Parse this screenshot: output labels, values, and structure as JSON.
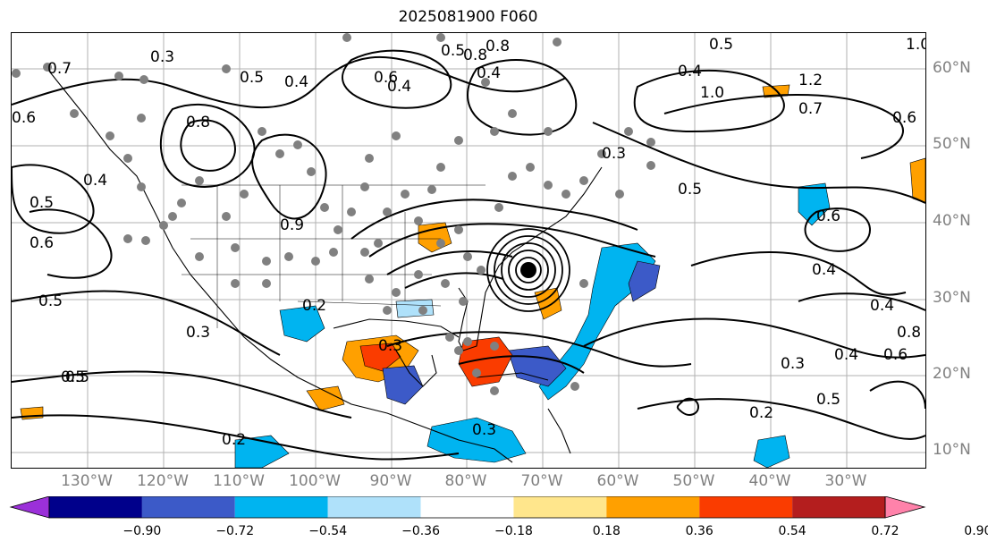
{
  "title": "2025081900 F060",
  "lat_labels": [
    "60°N",
    "50°N",
    "40°N",
    "30°N",
    "20°N",
    "10°N"
  ],
  "lon_labels": [
    "130°W",
    "120°W",
    "110°W",
    "100°W",
    "90°W",
    "80°W",
    "70°W",
    "60°W",
    "50°W",
    "40°W",
    "30°W"
  ],
  "colorbar": {
    "ticks": [
      "−0.90",
      "−0.72",
      "−0.54",
      "−0.36",
      "−0.18",
      "0.18",
      "0.36",
      "0.54",
      "0.72",
      "0.90"
    ],
    "colors": [
      "#9b30d9",
      "#00008b",
      "#3c5ac8",
      "#00b4f0",
      "#afe1fa",
      "#ffffff",
      "#ffe68c",
      "#ffa000",
      "#fa3c00",
      "#b41e1e",
      "#ff82aa"
    ],
    "extend": "both"
  },
  "contour_labels": [
    {
      "text": "0.7"
    },
    {
      "text": "0.3"
    },
    {
      "text": "0.6"
    },
    {
      "text": "0.5"
    },
    {
      "text": "0.4"
    },
    {
      "text": "0.6"
    },
    {
      "text": "0.4"
    },
    {
      "text": "0.8"
    },
    {
      "text": "0.5"
    },
    {
      "text": "0.4"
    },
    {
      "text": "0.8"
    },
    {
      "text": "0.4"
    },
    {
      "text": "0.5"
    },
    {
      "text": "1.0"
    },
    {
      "text": "1.2"
    },
    {
      "text": "0.7"
    },
    {
      "text": "0.6"
    },
    {
      "text": "1.0"
    },
    {
      "text": "0.6"
    },
    {
      "text": "0.4"
    },
    {
      "text": "0.5"
    },
    {
      "text": "0.9"
    },
    {
      "text": "0.6"
    },
    {
      "text": "0.4"
    },
    {
      "text": "0.3"
    },
    {
      "text": "0.8"
    },
    {
      "text": "0.5"
    },
    {
      "text": "0.5"
    },
    {
      "text": "0.6"
    },
    {
      "text": "0.4"
    },
    {
      "text": "0.4"
    },
    {
      "text": "0.5"
    },
    {
      "text": "0.3"
    },
    {
      "text": "0.2"
    },
    {
      "text": "0.3"
    },
    {
      "text": "0.2"
    },
    {
      "text": "0.3"
    },
    {
      "text": "0.5"
    },
    {
      "text": "0.3"
    },
    {
      "text": "0.4"
    },
    {
      "text": "0.4"
    },
    {
      "text": "0.6"
    },
    {
      "text": "0.8"
    },
    {
      "text": "0.5"
    },
    {
      "text": "0.2"
    }
  ],
  "hurricane_marker": "tropical cyclone center off Carolinas"
}
